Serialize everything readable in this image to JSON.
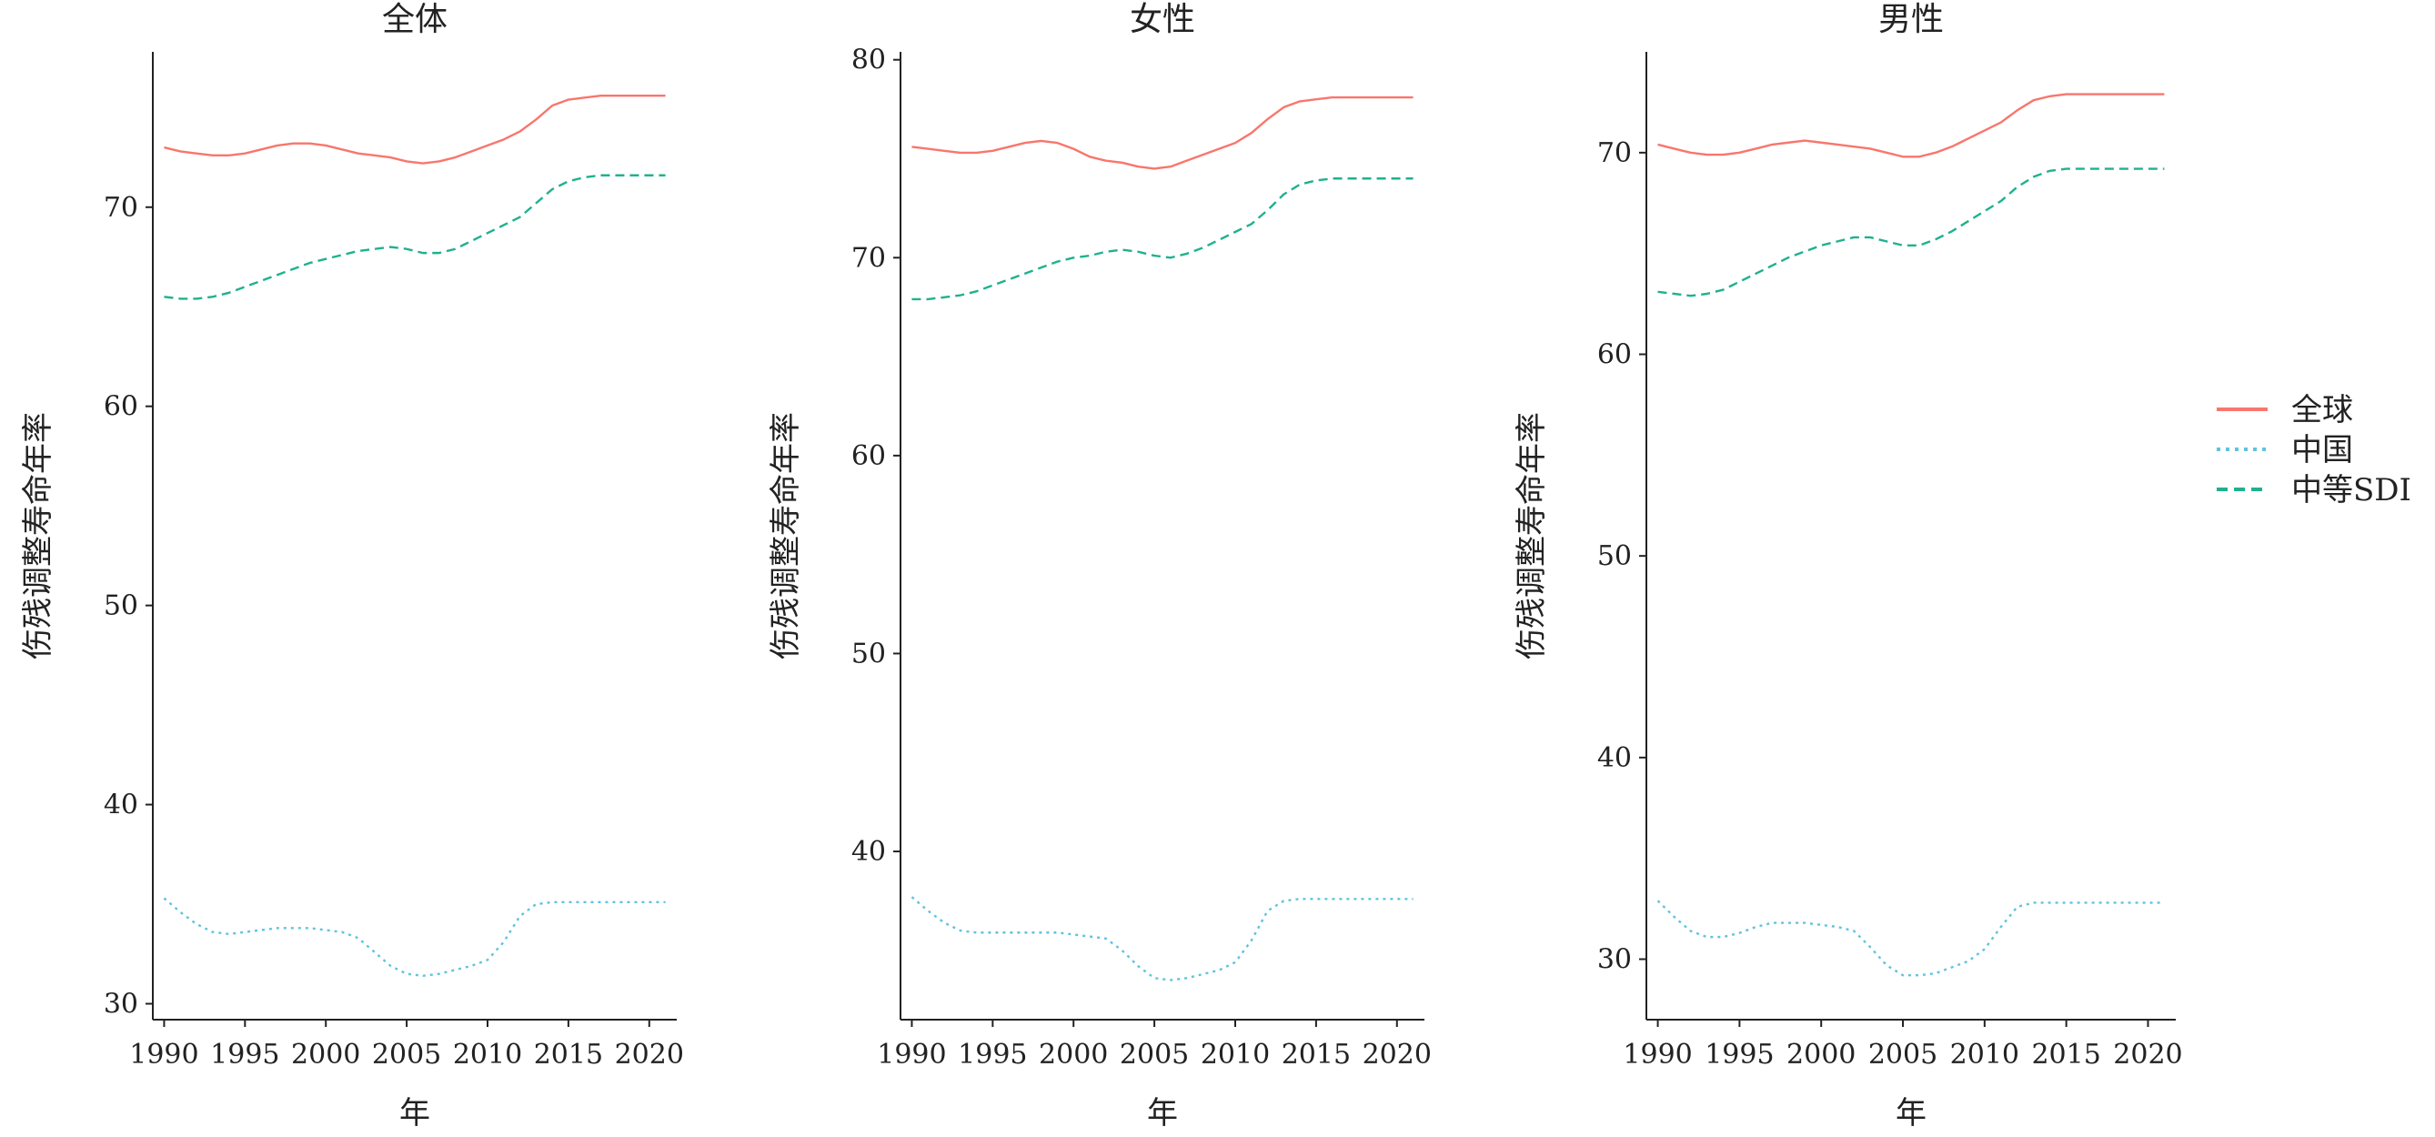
{
  "chart_data": {
    "type": "line",
    "x": [
      1990,
      1991,
      1992,
      1993,
      1994,
      1995,
      1996,
      1997,
      1998,
      1999,
      2000,
      2001,
      2002,
      2003,
      2004,
      2005,
      2006,
      2007,
      2008,
      2009,
      2010,
      2011,
      2012,
      2013,
      2014,
      2015,
      2016,
      2017,
      2018,
      2019,
      2020,
      2021
    ],
    "xlabel": "年",
    "ylabel": "伤残调整寿命年率",
    "xticks": [
      1990,
      1995,
      2000,
      2005,
      2010,
      2015,
      2020
    ],
    "xlim": [
      1989.3,
      2021.7
    ],
    "legend_position": "right",
    "grid": false,
    "series_styles": [
      {
        "name": "全球",
        "color": "#F8766D",
        "dash": "solid"
      },
      {
        "name": "中国",
        "color": "#61C3DE",
        "dash": "dotted"
      },
      {
        "name": "中等SDI",
        "color": "#1FB18E",
        "dash": "dashed"
      }
    ],
    "panels": [
      {
        "title": "全体",
        "ylim": [
          29.2,
          77.8
        ],
        "yticks": [
          30,
          40,
          50,
          60,
          70
        ],
        "series": [
          {
            "name": "全球",
            "values": [
              73.0,
              72.8,
              72.7,
              72.6,
              72.6,
              72.7,
              72.9,
              73.1,
              73.2,
              73.2,
              73.1,
              72.9,
              72.7,
              72.6,
              72.5,
              72.3,
              72.2,
              72.3,
              72.5,
              72.8,
              73.1,
              73.4,
              73.8,
              74.4,
              75.1,
              75.4,
              75.5,
              75.6,
              75.6,
              75.6,
              75.6,
              75.6
            ]
          },
          {
            "name": "中国",
            "values": [
              35.3,
              34.6,
              34.0,
              33.6,
              33.5,
              33.6,
              33.7,
              33.8,
              33.8,
              33.8,
              33.7,
              33.6,
              33.3,
              32.6,
              31.9,
              31.5,
              31.4,
              31.5,
              31.7,
              31.9,
              32.2,
              33.1,
              34.4,
              35.0,
              35.1,
              35.1,
              35.1,
              35.1,
              35.1,
              35.1,
              35.1,
              35.1
            ]
          },
          {
            "name": "中等SDI",
            "values": [
              65.5,
              65.4,
              65.4,
              65.5,
              65.7,
              66.0,
              66.3,
              66.6,
              66.9,
              67.2,
              67.4,
              67.6,
              67.8,
              67.9,
              68.0,
              67.9,
              67.7,
              67.7,
              67.9,
              68.3,
              68.7,
              69.1,
              69.5,
              70.2,
              70.9,
              71.3,
              71.5,
              71.6,
              71.6,
              71.6,
              71.6,
              71.6
            ]
          }
        ]
      },
      {
        "title": "女性",
        "ylim": [
          31.5,
          80.4
        ],
        "yticks": [
          40,
          50,
          60,
          70,
          80
        ],
        "series": [
          {
            "name": "全球",
            "values": [
              75.6,
              75.5,
              75.4,
              75.3,
              75.3,
              75.4,
              75.6,
              75.8,
              75.9,
              75.8,
              75.5,
              75.1,
              74.9,
              74.8,
              74.6,
              74.5,
              74.6,
              74.9,
              75.2,
              75.5,
              75.8,
              76.3,
              77.0,
              77.6,
              77.9,
              78.0,
              78.1,
              78.1,
              78.1,
              78.1,
              78.1,
              78.1
            ]
          },
          {
            "name": "中国",
            "values": [
              37.7,
              37.0,
              36.4,
              36.0,
              35.9,
              35.9,
              35.9,
              35.9,
              35.9,
              35.9,
              35.8,
              35.7,
              35.6,
              35.0,
              34.2,
              33.6,
              33.5,
              33.6,
              33.8,
              34.0,
              34.4,
              35.5,
              37.0,
              37.5,
              37.6,
              37.6,
              37.6,
              37.6,
              37.6,
              37.6,
              37.6,
              37.6
            ]
          },
          {
            "name": "中等SDI",
            "values": [
              67.9,
              67.9,
              68.0,
              68.1,
              68.3,
              68.6,
              68.9,
              69.2,
              69.5,
              69.8,
              70.0,
              70.1,
              70.3,
              70.4,
              70.3,
              70.1,
              70.0,
              70.2,
              70.5,
              70.9,
              71.3,
              71.7,
              72.4,
              73.2,
              73.7,
              73.9,
              74.0,
              74.0,
              74.0,
              74.0,
              74.0,
              74.0
            ]
          }
        ]
      },
      {
        "title": "男性",
        "ylim": [
          27.0,
          75.0
        ],
        "yticks": [
          30,
          40,
          50,
          60,
          70
        ],
        "series": [
          {
            "name": "全球",
            "values": [
              70.4,
              70.2,
              70.0,
              69.9,
              69.9,
              70.0,
              70.2,
              70.4,
              70.5,
              70.6,
              70.5,
              70.4,
              70.3,
              70.2,
              70.0,
              69.8,
              69.8,
              70.0,
              70.3,
              70.7,
              71.1,
              71.5,
              72.1,
              72.6,
              72.8,
              72.9,
              72.9,
              72.9,
              72.9,
              72.9,
              72.9,
              72.9
            ]
          },
          {
            "name": "中国",
            "values": [
              32.9,
              32.1,
              31.4,
              31.1,
              31.1,
              31.3,
              31.6,
              31.8,
              31.8,
              31.8,
              31.7,
              31.6,
              31.4,
              30.6,
              29.7,
              29.2,
              29.2,
              29.3,
              29.6,
              29.9,
              30.5,
              31.6,
              32.6,
              32.8,
              32.8,
              32.8,
              32.8,
              32.8,
              32.8,
              32.8,
              32.8,
              32.8
            ]
          },
          {
            "name": "中等SDI",
            "values": [
              63.1,
              63.0,
              62.9,
              63.0,
              63.2,
              63.6,
              64.0,
              64.4,
              64.8,
              65.1,
              65.4,
              65.6,
              65.8,
              65.8,
              65.6,
              65.4,
              65.4,
              65.7,
              66.1,
              66.6,
              67.1,
              67.6,
              68.3,
              68.8,
              69.1,
              69.2,
              69.2,
              69.2,
              69.2,
              69.2,
              69.2,
              69.2
            ]
          }
        ]
      }
    ]
  }
}
